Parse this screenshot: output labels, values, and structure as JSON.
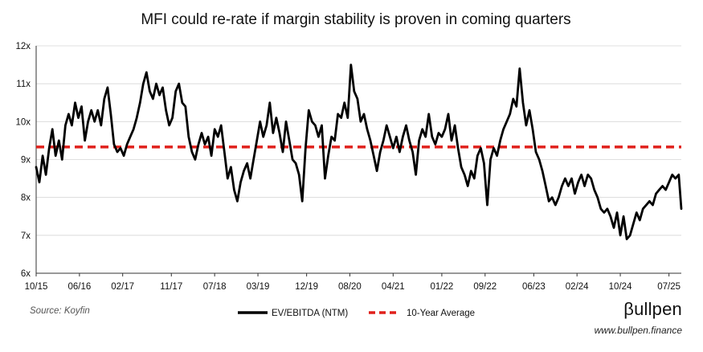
{
  "chart_data": {
    "type": "line",
    "title": "MFI could re-rate if margin stability is proven in coming quarters",
    "ylim": [
      6,
      12
    ],
    "y_ticks": [
      "6x",
      "7x",
      "8x",
      "9x",
      "10x",
      "11x",
      "12x"
    ],
    "y_tick_values": [
      6,
      7,
      8,
      9,
      10,
      11,
      12
    ],
    "x_domain": [
      2015.75,
      2025.69
    ],
    "x_ticks": [
      "10/15",
      "06/16",
      "02/17",
      "11/17",
      "07/18",
      "03/19",
      "12/19",
      "08/20",
      "04/21",
      "01/22",
      "09/22",
      "06/23",
      "02/24",
      "10/24",
      "07/25"
    ],
    "x_tick_values": [
      2015.75,
      2016.417,
      2017.083,
      2017.833,
      2018.5,
      2019.167,
      2019.917,
      2020.583,
      2021.25,
      2022.0,
      2022.667,
      2023.417,
      2024.083,
      2024.75,
      2025.5
    ],
    "grid": "horizontal",
    "series": [
      {
        "name": "EV/EBITDA (NTM)",
        "color": "#000000",
        "style": "solid",
        "points": [
          [
            2015.75,
            8.8
          ],
          [
            2015.8,
            8.4
          ],
          [
            2015.85,
            9.1
          ],
          [
            2015.9,
            8.6
          ],
          [
            2015.95,
            9.3
          ],
          [
            2016.0,
            9.8
          ],
          [
            2016.05,
            9.1
          ],
          [
            2016.1,
            9.5
          ],
          [
            2016.15,
            9.0
          ],
          [
            2016.2,
            9.9
          ],
          [
            2016.25,
            10.2
          ],
          [
            2016.3,
            9.9
          ],
          [
            2016.35,
            10.5
          ],
          [
            2016.4,
            10.1
          ],
          [
            2016.45,
            10.4
          ],
          [
            2016.5,
            9.5
          ],
          [
            2016.55,
            10.0
          ],
          [
            2016.6,
            10.3
          ],
          [
            2016.65,
            10.0
          ],
          [
            2016.7,
            10.3
          ],
          [
            2016.75,
            9.9
          ],
          [
            2016.8,
            10.6
          ],
          [
            2016.85,
            10.9
          ],
          [
            2016.9,
            10.2
          ],
          [
            2016.95,
            9.4
          ],
          [
            2017.0,
            9.2
          ],
          [
            2017.05,
            9.3
          ],
          [
            2017.1,
            9.1
          ],
          [
            2017.15,
            9.4
          ],
          [
            2017.2,
            9.6
          ],
          [
            2017.25,
            9.8
          ],
          [
            2017.3,
            10.1
          ],
          [
            2017.35,
            10.5
          ],
          [
            2017.4,
            11.0
          ],
          [
            2017.45,
            11.3
          ],
          [
            2017.5,
            10.8
          ],
          [
            2017.55,
            10.6
          ],
          [
            2017.6,
            11.0
          ],
          [
            2017.65,
            10.7
          ],
          [
            2017.7,
            10.9
          ],
          [
            2017.75,
            10.3
          ],
          [
            2017.8,
            9.9
          ],
          [
            2017.85,
            10.1
          ],
          [
            2017.9,
            10.8
          ],
          [
            2017.95,
            11.0
          ],
          [
            2018.0,
            10.5
          ],
          [
            2018.05,
            10.4
          ],
          [
            2018.1,
            9.6
          ],
          [
            2018.15,
            9.2
          ],
          [
            2018.2,
            9.0
          ],
          [
            2018.25,
            9.4
          ],
          [
            2018.3,
            9.7
          ],
          [
            2018.35,
            9.4
          ],
          [
            2018.4,
            9.6
          ],
          [
            2018.45,
            9.1
          ],
          [
            2018.5,
            9.8
          ],
          [
            2018.55,
            9.6
          ],
          [
            2018.6,
            9.9
          ],
          [
            2018.65,
            9.2
          ],
          [
            2018.7,
            8.5
          ],
          [
            2018.75,
            8.8
          ],
          [
            2018.8,
            8.2
          ],
          [
            2018.85,
            7.9
          ],
          [
            2018.9,
            8.4
          ],
          [
            2018.95,
            8.7
          ],
          [
            2019.0,
            8.9
          ],
          [
            2019.05,
            8.5
          ],
          [
            2019.1,
            9.0
          ],
          [
            2019.15,
            9.5
          ],
          [
            2019.2,
            10.0
          ],
          [
            2019.25,
            9.6
          ],
          [
            2019.3,
            9.9
          ],
          [
            2019.35,
            10.5
          ],
          [
            2019.4,
            9.7
          ],
          [
            2019.45,
            10.1
          ],
          [
            2019.5,
            9.7
          ],
          [
            2019.55,
            9.2
          ],
          [
            2019.6,
            10.0
          ],
          [
            2019.65,
            9.5
          ],
          [
            2019.7,
            9.0
          ],
          [
            2019.75,
            8.9
          ],
          [
            2019.8,
            8.6
          ],
          [
            2019.85,
            7.9
          ],
          [
            2019.9,
            9.3
          ],
          [
            2019.95,
            10.3
          ],
          [
            2020.0,
            10.0
          ],
          [
            2020.05,
            9.9
          ],
          [
            2020.1,
            9.6
          ],
          [
            2020.15,
            9.9
          ],
          [
            2020.2,
            8.5
          ],
          [
            2020.25,
            9.1
          ],
          [
            2020.3,
            9.6
          ],
          [
            2020.35,
            9.5
          ],
          [
            2020.4,
            10.2
          ],
          [
            2020.45,
            10.1
          ],
          [
            2020.5,
            10.5
          ],
          [
            2020.55,
            10.1
          ],
          [
            2020.6,
            11.5
          ],
          [
            2020.65,
            10.8
          ],
          [
            2020.7,
            10.6
          ],
          [
            2020.75,
            10.0
          ],
          [
            2020.8,
            10.2
          ],
          [
            2020.85,
            9.8
          ],
          [
            2020.9,
            9.5
          ],
          [
            2020.95,
            9.1
          ],
          [
            2021.0,
            8.7
          ],
          [
            2021.05,
            9.2
          ],
          [
            2021.1,
            9.5
          ],
          [
            2021.15,
            9.9
          ],
          [
            2021.2,
            9.6
          ],
          [
            2021.25,
            9.3
          ],
          [
            2021.3,
            9.6
          ],
          [
            2021.35,
            9.2
          ],
          [
            2021.4,
            9.6
          ],
          [
            2021.45,
            9.9
          ],
          [
            2021.5,
            9.5
          ],
          [
            2021.55,
            9.2
          ],
          [
            2021.6,
            8.6
          ],
          [
            2021.65,
            9.5
          ],
          [
            2021.7,
            9.8
          ],
          [
            2021.75,
            9.6
          ],
          [
            2021.8,
            10.2
          ],
          [
            2021.85,
            9.6
          ],
          [
            2021.9,
            9.4
          ],
          [
            2021.95,
            9.7
          ],
          [
            2022.0,
            9.6
          ],
          [
            2022.05,
            9.8
          ],
          [
            2022.1,
            10.2
          ],
          [
            2022.15,
            9.5
          ],
          [
            2022.2,
            9.9
          ],
          [
            2022.25,
            9.3
          ],
          [
            2022.3,
            8.8
          ],
          [
            2022.35,
            8.6
          ],
          [
            2022.4,
            8.3
          ],
          [
            2022.45,
            8.7
          ],
          [
            2022.5,
            8.5
          ],
          [
            2022.55,
            9.1
          ],
          [
            2022.6,
            9.3
          ],
          [
            2022.65,
            8.9
          ],
          [
            2022.7,
            7.8
          ],
          [
            2022.75,
            9.0
          ],
          [
            2022.8,
            9.3
          ],
          [
            2022.85,
            9.1
          ],
          [
            2022.9,
            9.5
          ],
          [
            2022.95,
            9.8
          ],
          [
            2023.0,
            10.0
          ],
          [
            2023.05,
            10.2
          ],
          [
            2023.1,
            10.6
          ],
          [
            2023.15,
            10.4
          ],
          [
            2023.2,
            11.4
          ],
          [
            2023.25,
            10.5
          ],
          [
            2023.3,
            9.9
          ],
          [
            2023.35,
            10.3
          ],
          [
            2023.4,
            9.8
          ],
          [
            2023.45,
            9.2
          ],
          [
            2023.5,
            9.0
          ],
          [
            2023.55,
            8.7
          ],
          [
            2023.6,
            8.3
          ],
          [
            2023.65,
            7.9
          ],
          [
            2023.7,
            8.0
          ],
          [
            2023.75,
            7.8
          ],
          [
            2023.8,
            8.0
          ],
          [
            2023.85,
            8.3
          ],
          [
            2023.9,
            8.5
          ],
          [
            2023.95,
            8.3
          ],
          [
            2024.0,
            8.5
          ],
          [
            2024.05,
            8.1
          ],
          [
            2024.1,
            8.4
          ],
          [
            2024.15,
            8.6
          ],
          [
            2024.2,
            8.3
          ],
          [
            2024.25,
            8.6
          ],
          [
            2024.3,
            8.5
          ],
          [
            2024.35,
            8.2
          ],
          [
            2024.4,
            8.0
          ],
          [
            2024.45,
            7.7
          ],
          [
            2024.5,
            7.6
          ],
          [
            2024.55,
            7.7
          ],
          [
            2024.6,
            7.5
          ],
          [
            2024.65,
            7.2
          ],
          [
            2024.7,
            7.6
          ],
          [
            2024.75,
            7.0
          ],
          [
            2024.8,
            7.5
          ],
          [
            2024.85,
            6.9
          ],
          [
            2024.9,
            7.0
          ],
          [
            2024.95,
            7.3
          ],
          [
            2025.0,
            7.6
          ],
          [
            2025.05,
            7.4
          ],
          [
            2025.1,
            7.7
          ],
          [
            2025.15,
            7.8
          ],
          [
            2025.2,
            7.9
          ],
          [
            2025.25,
            7.8
          ],
          [
            2025.3,
            8.1
          ],
          [
            2025.35,
            8.2
          ],
          [
            2025.4,
            8.3
          ],
          [
            2025.45,
            8.2
          ],
          [
            2025.5,
            8.4
          ],
          [
            2025.55,
            8.6
          ],
          [
            2025.6,
            8.5
          ],
          [
            2025.65,
            8.6
          ],
          [
            2025.69,
            7.7
          ]
        ]
      },
      {
        "name": "10-Year Average",
        "color": "#e0201b",
        "style": "dashed",
        "value": 9.33
      }
    ]
  },
  "footer": {
    "source": "Source: Koyfin",
    "brand": "βullpen",
    "url": "www.bullpen.finance"
  }
}
